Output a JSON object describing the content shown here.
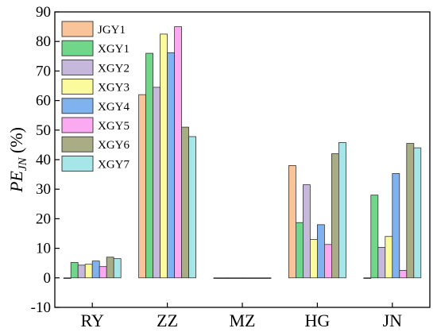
{
  "chart_data": {
    "type": "bar",
    "ylabel": {
      "main": "PE",
      "sub": "JN",
      "unit": " (%)"
    },
    "ylim": [
      -10,
      90
    ],
    "yticks": [
      -10,
      0,
      10,
      20,
      30,
      40,
      50,
      60,
      70,
      80,
      90
    ],
    "categories": [
      "RY",
      "ZZ",
      "MZ",
      "HG",
      "JN"
    ],
    "legend_position": "top-left",
    "series": [
      {
        "name": "JGY1",
        "color": "#f9c49a",
        "values": [
          0,
          62,
          0,
          38,
          0
        ]
      },
      {
        "name": "XGY1",
        "color": "#6fd68a",
        "values": [
          5.2,
          76,
          0,
          18.7,
          28
        ]
      },
      {
        "name": "XGY2",
        "color": "#c6b8db",
        "values": [
          4.3,
          64.5,
          0,
          31.5,
          10.3
        ]
      },
      {
        "name": "XGY3",
        "color": "#fbfb9d",
        "values": [
          4.6,
          82.5,
          0,
          13,
          14
        ]
      },
      {
        "name": "XGY4",
        "color": "#7fb2ee",
        "values": [
          5.7,
          76.2,
          0,
          18,
          35.3
        ]
      },
      {
        "name": "XGY5",
        "color": "#fbaaf2",
        "values": [
          3.8,
          85,
          0,
          11.3,
          2.5
        ]
      },
      {
        "name": "XGY6",
        "color": "#a8ad86",
        "values": [
          7,
          51,
          0,
          42,
          45.5
        ]
      },
      {
        "name": "XGY7",
        "color": "#a6e6e9",
        "values": [
          6.5,
          47.8,
          0,
          45.8,
          44
        ]
      }
    ]
  }
}
